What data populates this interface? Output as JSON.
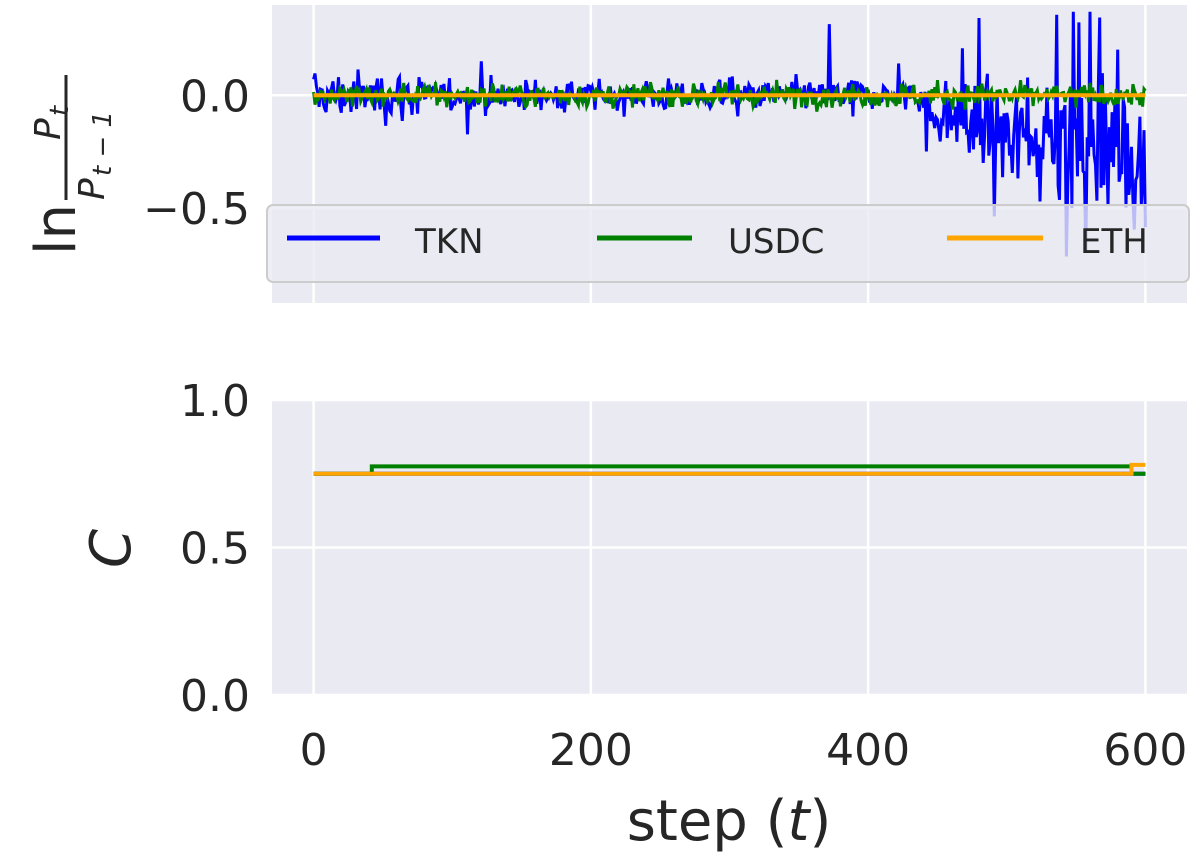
{
  "chart_data": [
    {
      "type": "line",
      "panel": "top",
      "ylabel": "ln P_t / P_{t-1}",
      "xlim": [
        -30,
        630
      ],
      "ylim": [
        -0.92,
        0.4
      ],
      "yticks": [
        0.0,
        -0.5
      ],
      "ytick_labels": [
        "0.0",
        "−0.5"
      ],
      "xticks": [
        0,
        200,
        400,
        600
      ],
      "grid": true,
      "legend": "lower center, 3 columns",
      "series": [
        {
          "name": "TKN",
          "color": "#0000ff",
          "x_range": [
            0,
            600
          ],
          "description_values": {
            "early_amplitude": 0.3,
            "late_min": -0.85,
            "late_max": 0.38
          }
        },
        {
          "name": "USDC",
          "color": "#008000",
          "x_range": [
            0,
            600
          ],
          "description_values": {
            "amplitude": 0.15
          }
        },
        {
          "name": "ETH",
          "color": "#ffa500",
          "x_range": [
            0,
            600
          ],
          "values": [
            0.0,
            0.0
          ]
        }
      ]
    },
    {
      "type": "line",
      "panel": "bottom",
      "xlabel": "step (t)",
      "ylabel": "C",
      "xlim": [
        -30,
        630
      ],
      "ylim": [
        0.0,
        1.0
      ],
      "yticks": [
        0.0,
        0.5,
        1.0
      ],
      "ytick_labels": [
        "0.0",
        "0.5",
        "1.0"
      ],
      "xticks": [
        0,
        200,
        400,
        600
      ],
      "xtick_labels": [
        "0",
        "200",
        "400",
        "600"
      ],
      "grid": true,
      "series": [
        {
          "name": "TKN",
          "color": "#0000ff",
          "x": [
            0,
            600
          ],
          "y": [
            0.75,
            0.75
          ]
        },
        {
          "name": "USDC",
          "color": "#008000",
          "x": [
            0,
            42,
            42,
            590,
            590,
            600
          ],
          "y": [
            0.75,
            0.75,
            0.775,
            0.775,
            0.75,
            0.75
          ]
        },
        {
          "name": "ETH",
          "color": "#ffa500",
          "x": [
            0,
            590,
            590,
            600
          ],
          "y": [
            0.75,
            0.75,
            0.78,
            0.78
          ]
        }
      ]
    }
  ],
  "labels": {
    "top_ylabel_ln": "ln",
    "top_ylabel_num": "P",
    "top_ylabel_num_sub": "t",
    "top_ylabel_den": "P",
    "top_ylabel_den_sub": "t − 1",
    "bottom_ylabel": "C",
    "xlabel_prefix": "step (",
    "xlabel_var": "t",
    "xlabel_suffix": ")"
  },
  "colors": {
    "axes_bg": "#eaeaf2",
    "grid": "#ffffff",
    "tkn": "#0000ff",
    "usdc": "#008000",
    "eth": "#ffa500"
  }
}
